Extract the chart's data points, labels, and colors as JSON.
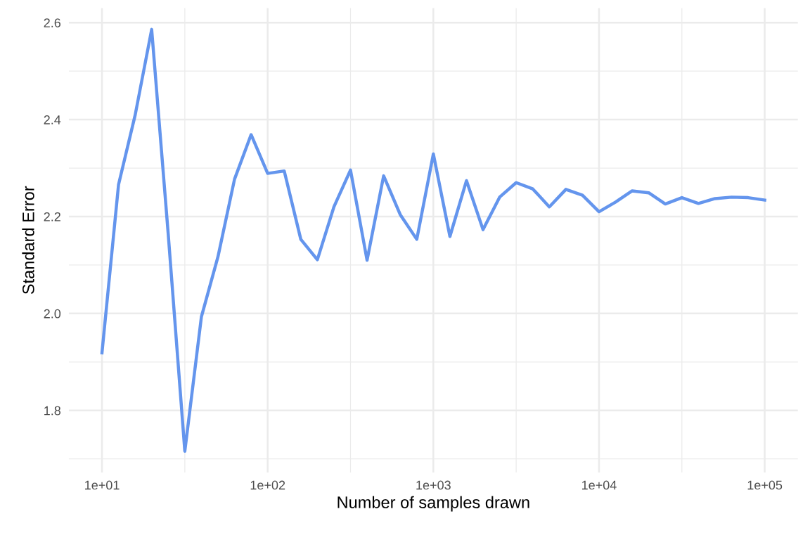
{
  "chart_data": {
    "type": "line",
    "xlabel": "Number of samples drawn",
    "ylabel": "Standard Error",
    "log": "x",
    "grid": true,
    "xlim": [
      6.31,
      158489
    ],
    "ylim": [
      1.672,
      2.63
    ],
    "xticks": [
      {
        "value": 10,
        "label": "1e+01"
      },
      {
        "value": 31.62,
        "label": null
      },
      {
        "value": 100,
        "label": "1e+02"
      },
      {
        "value": 316.2,
        "label": null
      },
      {
        "value": 1000,
        "label": "1e+03"
      },
      {
        "value": 3162,
        "label": null
      },
      {
        "value": 10000,
        "label": "1e+04"
      },
      {
        "value": 31623,
        "label": null
      },
      {
        "value": 100000,
        "label": "1e+05"
      }
    ],
    "yticks": [
      {
        "value": 1.7,
        "label": null
      },
      1.8,
      {
        "value": 1.9,
        "label": null
      },
      {
        "value": 2.0,
        "label": "2.0"
      },
      {
        "value": 2.1,
        "label": null
      },
      2.2,
      {
        "value": 2.3,
        "label": null
      },
      2.4,
      {
        "value": 2.5,
        "label": null
      },
      2.6
    ],
    "x": [
      10,
      12.59,
      15.85,
      19.95,
      25.12,
      31.62,
      39.81,
      50.12,
      63.1,
      79.43,
      100,
      125.9,
      158.5,
      199.5,
      251.2,
      316.2,
      398.1,
      501.2,
      631,
      794.3,
      1000,
      1259,
      1585,
      1995,
      2512,
      3162,
      3981,
      5012,
      6310,
      7943,
      10000,
      12589,
      15849,
      19953,
      25119,
      31623,
      39811,
      50119,
      63096,
      79433,
      100000
    ],
    "series": [
      {
        "color": "#6495ed",
        "values": [
          1.919,
          2.266,
          2.409,
          2.586,
          2.163,
          1.716,
          1.993,
          2.117,
          2.277,
          2.369,
          2.289,
          2.294,
          2.153,
          2.111,
          2.22,
          2.296,
          2.11,
          2.284,
          2.204,
          2.153,
          2.329,
          2.159,
          2.274,
          2.173,
          2.24,
          2.27,
          2.257,
          2.22,
          2.256,
          2.244,
          2.21,
          2.23,
          2.253,
          2.249,
          2.226,
          2.239,
          2.227,
          2.237,
          2.24,
          2.239,
          2.234
        ]
      }
    ]
  }
}
